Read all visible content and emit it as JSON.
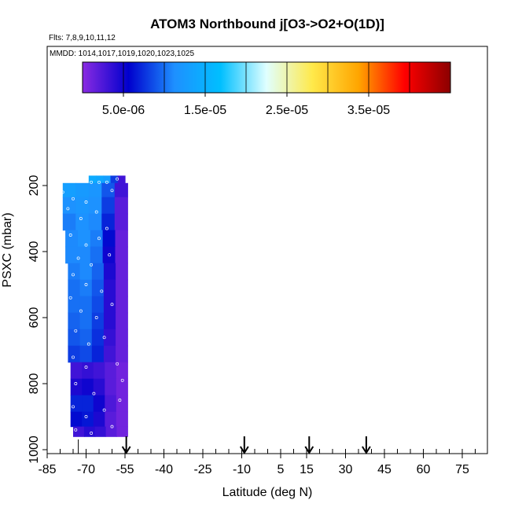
{
  "chart_data": {
    "type": "heatmap",
    "title": "ATOM3 Northbound j[O3->O2+O(1D)]",
    "flights_label": "Flts: 7,8,9,10,11,12",
    "dates_label": "MMDD: 1014,1017,1019,1020,1023,1025",
    "xlabel": "Latitude (deg N)",
    "ylabel": "PSXC (mbar)",
    "xlim": [
      -85,
      80
    ],
    "ylim": [
      1000,
      100
    ],
    "x_ticks": [
      -85,
      -70,
      -55,
      -40,
      -25,
      -10,
      5,
      15,
      30,
      45,
      60,
      75
    ],
    "y_ticks": [
      200,
      400,
      600,
      800,
      1000
    ],
    "colorbar": {
      "range": [
        0,
        4.5e-05
      ],
      "tick_values": [
        5e-06,
        1.5e-05,
        2.5e-05,
        3.5e-05
      ],
      "tick_labels": [
        "5.0e-06",
        "1.5e-05",
        "2.5e-05",
        "3.5e-05"
      ],
      "colors": [
        "#8a2be2",
        "#0000cd",
        "#1e90ff",
        "#00bfff",
        "#e0ffff",
        "#ffe94a",
        "#ffa500",
        "#ff0000",
        "#8b0000"
      ]
    },
    "profile_arrows_lat": [
      -54.5,
      -9,
      16,
      38
    ],
    "data_coverage": {
      "lat_range": [
        -80,
        -53
      ],
      "pressure_range": [
        170,
        960
      ]
    },
    "profiles": [
      {
        "p": 175,
        "lat0": -69,
        "lat1": -55,
        "values": [
          1.45e-05,
          1.4e-05,
          1.3e-05,
          8e-06,
          3e-06
        ]
      },
      {
        "p": 210,
        "lat0": -79,
        "lat1": -54,
        "values": [
          1.3e-05,
          1.25e-05,
          1.2e-05,
          9e-06,
          3e-06
        ]
      },
      {
        "p": 260,
        "lat0": -79,
        "lat1": -54,
        "values": [
          1.15e-05,
          1.2e-05,
          1.15e-05,
          8e-06,
          2e-06
        ]
      },
      {
        "p": 310,
        "lat0": -79,
        "lat1": -54,
        "values": [
          1.05e-05,
          1.15e-05,
          1.1e-05,
          7e-06,
          2e-06
        ]
      },
      {
        "p": 360,
        "lat0": -78,
        "lat1": -54,
        "values": [
          1.1e-05,
          1.15e-05,
          1.05e-05,
          6e-06,
          1.5e-06
        ]
      },
      {
        "p": 410,
        "lat0": -78,
        "lat1": -54,
        "values": [
          1.1e-05,
          1.1e-05,
          1e-05,
          5e-06,
          1.5e-06
        ]
      },
      {
        "p": 460,
        "lat0": -77,
        "lat1": -54,
        "values": [
          1.05e-05,
          1.1e-05,
          9.5e-06,
          4.5e-06,
          1.5e-06
        ]
      },
      {
        "p": 510,
        "lat0": -77,
        "lat1": -54,
        "values": [
          1e-05,
          1.05e-05,
          9e-06,
          4e-06,
          1.5e-06
        ]
      },
      {
        "p": 560,
        "lat0": -77,
        "lat1": -54,
        "values": [
          1e-05,
          1e-05,
          8.5e-06,
          4e-06,
          1.5e-06
        ]
      },
      {
        "p": 610,
        "lat0": -77,
        "lat1": -54,
        "values": [
          9.5e-06,
          1e-05,
          8e-06,
          4e-06,
          1.5e-06
        ]
      },
      {
        "p": 660,
        "lat0": -77,
        "lat1": -54,
        "values": [
          9e-06,
          9.5e-06,
          7.5e-06,
          3.5e-06,
          1.5e-06
        ]
      },
      {
        "p": 710,
        "lat0": -77,
        "lat1": -54,
        "values": [
          8e-06,
          8.5e-06,
          7e-06,
          3e-06,
          1.5e-06
        ]
      },
      {
        "p": 760,
        "lat0": -76,
        "lat1": -54,
        "values": [
          3e-06,
          3.5e-06,
          3e-06,
          2e-06,
          1e-06
        ]
      },
      {
        "p": 810,
        "lat0": -76,
        "lat1": -54,
        "values": [
          4.5e-06,
          5e-06,
          4e-06,
          2e-06,
          1e-06
        ]
      },
      {
        "p": 860,
        "lat0": -76,
        "lat1": -54,
        "values": [
          7e-06,
          7e-06,
          5e-06,
          2.5e-06,
          1e-06
        ]
      },
      {
        "p": 910,
        "lat0": -76,
        "lat1": -54,
        "values": [
          6e-06,
          6.5e-06,
          4.5e-06,
          2e-06,
          1e-06
        ]
      },
      {
        "p": 950,
        "lat0": -75,
        "lat1": -54,
        "values": [
          3e-06,
          4e-06,
          3.5e-06,
          2e-06,
          1e-06
        ]
      }
    ],
    "sample_points": [
      {
        "lat": -68,
        "p": 190
      },
      {
        "lat": -65,
        "p": 190
      },
      {
        "lat": -62,
        "p": 190
      },
      {
        "lat": -58,
        "p": 180
      },
      {
        "lat": -79,
        "p": 220
      },
      {
        "lat": -75,
        "p": 240
      },
      {
        "lat": -70,
        "p": 250
      },
      {
        "lat": -60,
        "p": 215
      },
      {
        "lat": -77,
        "p": 270
      },
      {
        "lat": -72,
        "p": 300
      },
      {
        "lat": -66,
        "p": 280
      },
      {
        "lat": -62,
        "p": 330
      },
      {
        "lat": -76,
        "p": 350
      },
      {
        "lat": -70,
        "p": 380
      },
      {
        "lat": -65,
        "p": 360
      },
      {
        "lat": -73,
        "p": 420
      },
      {
        "lat": -68,
        "p": 440
      },
      {
        "lat": -61,
        "p": 410
      },
      {
        "lat": -75,
        "p": 470
      },
      {
        "lat": -70,
        "p": 500
      },
      {
        "lat": -64,
        "p": 520
      },
      {
        "lat": -76,
        "p": 540
      },
      {
        "lat": -72,
        "p": 580
      },
      {
        "lat": -66,
        "p": 600
      },
      {
        "lat": -60,
        "p": 560
      },
      {
        "lat": -74,
        "p": 640
      },
      {
        "lat": -69,
        "p": 680
      },
      {
        "lat": -63,
        "p": 660
      },
      {
        "lat": -75,
        "p": 720
      },
      {
        "lat": -70,
        "p": 750
      },
      {
        "lat": -58,
        "p": 740
      },
      {
        "lat": -74,
        "p": 800
      },
      {
        "lat": -67,
        "p": 830
      },
      {
        "lat": -56,
        "p": 790
      },
      {
        "lat": -75,
        "p": 870
      },
      {
        "lat": -70,
        "p": 900
      },
      {
        "lat": -63,
        "p": 880
      },
      {
        "lat": -57,
        "p": 850
      },
      {
        "lat": -74,
        "p": 940
      },
      {
        "lat": -68,
        "p": 950
      },
      {
        "lat": -60,
        "p": 930
      }
    ]
  }
}
